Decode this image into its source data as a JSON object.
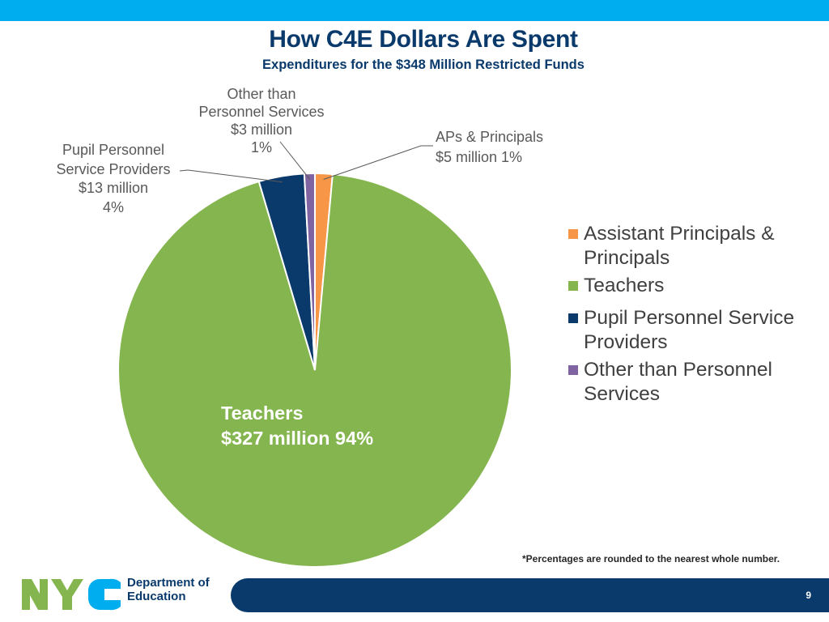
{
  "header": {
    "title": "How C4E Dollars Are Spent",
    "subtitle": "Expenditures for the $348 Million Restricted Funds"
  },
  "chart_data": {
    "type": "pie",
    "title": "How C4E Dollars Are Spent",
    "subtitle": "Expenditures for the $348 Million Restricted Funds",
    "slices": [
      {
        "label": "Assistant Principals & Principals",
        "value": 5,
        "percent": 1,
        "color": "#f79646"
      },
      {
        "label": "Teachers",
        "value": 327,
        "percent": 94,
        "color": "#84b54f"
      },
      {
        "label": "Pupil Personnel Service Providers",
        "value": 13,
        "percent": 4,
        "color": "#0a3a6b"
      },
      {
        "label": "Other than Personnel Services",
        "value": 3,
        "percent": 1,
        "color": "#8064a2"
      }
    ],
    "legend_position": "right",
    "data_labels": {
      "aps": [
        "APs & Principals",
        "$5 million  1%"
      ],
      "teachers": [
        "Teachers",
        "$327 million  94%"
      ],
      "pupil": [
        "Pupil Personnel",
        "Service Providers",
        "$13 million",
        "4%"
      ],
      "otps": [
        "Other than",
        "Personnel Services",
        "$3 million",
        "1%"
      ]
    }
  },
  "footnote": "*Percentages are rounded to the nearest whole number.",
  "footer": {
    "page_number": "9",
    "logo_text": "NYC",
    "department_line1": "Department of",
    "department_line2": "Education"
  },
  "colors": {
    "accent_blue": "#00aeef",
    "navy": "#0a3a6b",
    "logo_green": "#84b54f",
    "logo_blue": "#00aeef"
  }
}
